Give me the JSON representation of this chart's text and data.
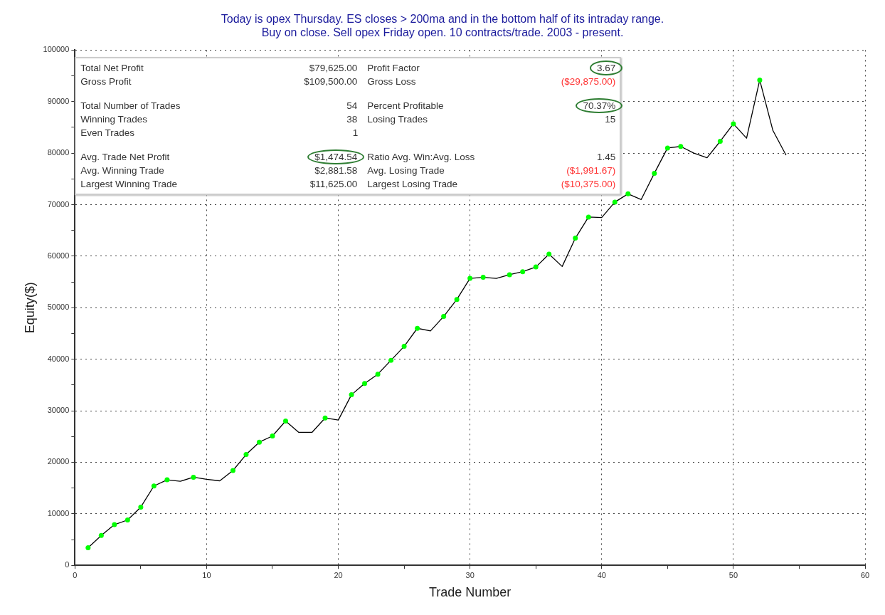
{
  "chart_data": {
    "type": "line",
    "title": "Today is opex Thursday. ES closes > 200ma and in the bottom half of its intraday range.\nBuy on close. Sell opex Friday open. 10 contracts/trade. 2003 - present.",
    "xlabel": "Trade Number",
    "ylabel": "Equity($)",
    "series": [
      {
        "color": "#000000",
        "marker": "none",
        "x": [
          1,
          2,
          3,
          4,
          5,
          6,
          7,
          8,
          9,
          10,
          11,
          12,
          13,
          14,
          15,
          16,
          17,
          18,
          19,
          20,
          21,
          22,
          23,
          24,
          25,
          26,
          27,
          28,
          29,
          30,
          31,
          32,
          33,
          34,
          35,
          36,
          37,
          38,
          39,
          40,
          41,
          42,
          43,
          44,
          45,
          46,
          47,
          48,
          49,
          50,
          51,
          52,
          53,
          54
        ],
        "values": [
          3400,
          5800,
          7900,
          8800,
          11300,
          15400,
          16600,
          16300,
          17100,
          16700,
          16400,
          18400,
          21500,
          23900,
          25100,
          28000,
          25800,
          25800,
          28600,
          28200,
          33100,
          35300,
          37100,
          39800,
          42500,
          46000,
          45500,
          48300,
          51600,
          55700,
          55900,
          55700,
          56400,
          57000,
          57900,
          60400,
          58000,
          63500,
          67600,
          67500,
          70500,
          72100,
          71000,
          76100,
          81000,
          81300,
          80000,
          79100,
          82300,
          85700,
          82900,
          94200,
          84400,
          79600
        ]
      },
      {
        "type": "scatter",
        "color": "#00ff00",
        "marker": "circle",
        "x": [
          1,
          2,
          3,
          4,
          5,
          6,
          7,
          9,
          12,
          13,
          14,
          15,
          16,
          19,
          21,
          22,
          23,
          24,
          25,
          26,
          28,
          29,
          30,
          31,
          33,
          34,
          35,
          36,
          38,
          39,
          41,
          42,
          44,
          45,
          46,
          49,
          50,
          52
        ],
        "values": [
          3400,
          5800,
          7900,
          8800,
          11300,
          15400,
          16600,
          17100,
          18400,
          21500,
          23900,
          25100,
          28000,
          28600,
          33100,
          35300,
          37100,
          39800,
          42500,
          46000,
          48300,
          51600,
          55700,
          55900,
          56400,
          57000,
          57900,
          60400,
          63500,
          67600,
          70500,
          72100,
          76100,
          81000,
          81300,
          82300,
          85700,
          94200
        ]
      }
    ],
    "xlim": [
      0,
      60
    ],
    "xticks": [
      0,
      {
        "value": 5,
        "label": null
      },
      10,
      {
        "value": 15,
        "label": null
      },
      20,
      {
        "value": 25,
        "label": null
      },
      30,
      {
        "value": 35,
        "label": null
      },
      40,
      {
        "value": 45,
        "label": null
      },
      50,
      {
        "value": 55,
        "label": null
      },
      60
    ],
    "ylim": [
      0,
      100000
    ],
    "yticks": [
      0,
      {
        "value": 5000,
        "label": null
      },
      10000,
      {
        "value": 15000,
        "label": null
      },
      20000,
      {
        "value": 25000,
        "label": null
      },
      30000,
      {
        "value": 35000,
        "label": null
      },
      40000,
      {
        "value": 45000,
        "label": null
      },
      50000,
      {
        "value": 55000,
        "label": null
      },
      60000,
      {
        "value": 65000,
        "label": null
      },
      70000,
      {
        "value": 75000,
        "label": null
      },
      80000,
      {
        "value": 85000,
        "label": null
      },
      90000,
      {
        "value": 95000,
        "label": null
      },
      100000
    ],
    "grid": true,
    "legend": false,
    "annotations": [
      "Total Net Profit",
      "$79,625.00",
      "Profit Factor",
      "3.67",
      "Gross Profit",
      "$109,500.00",
      "Gross Loss",
      "($29,875.00)",
      "Total Number of Trades",
      "54",
      "Percent Profitable",
      "70.37%",
      "Winning Trades",
      "38",
      "Losing Trades",
      "15",
      "Even Trades",
      "1",
      "Avg. Trade Net Profit",
      "$1,474.54",
      "Ratio Avg. Win:Avg. Loss",
      "1.45",
      "Avg. Winning Trade",
      "$2,881.58",
      "Avg. Losing Trade",
      "($1,991.67)",
      "Largest Winning Trade",
      "$11,625.00",
      "Largest Losing Trade",
      "($10,375.00)"
    ]
  }
}
